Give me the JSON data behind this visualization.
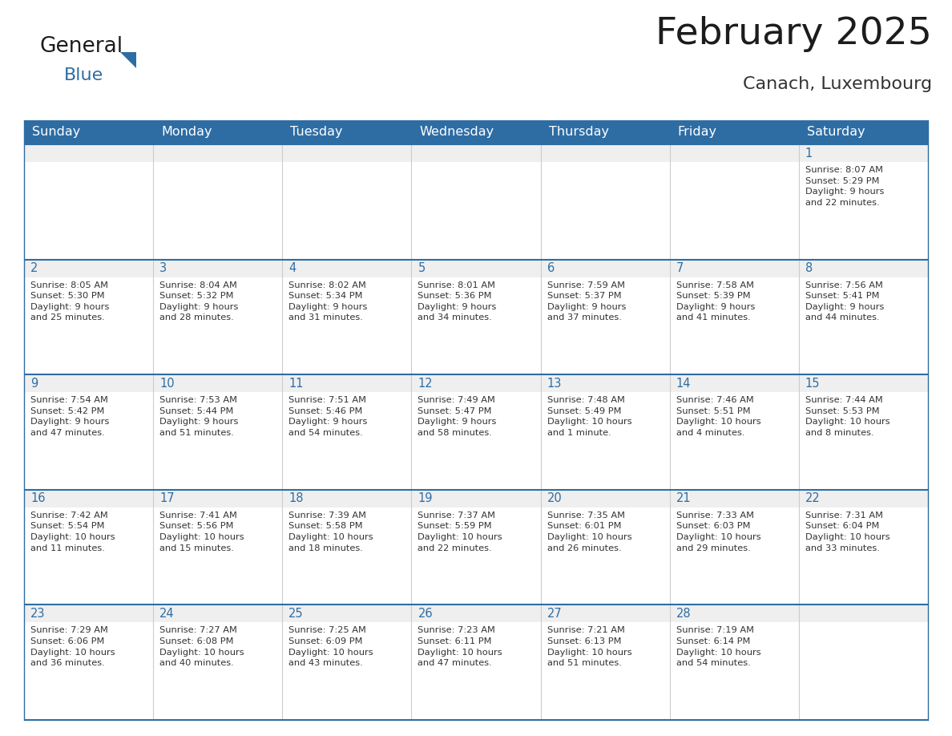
{
  "title": "February 2025",
  "subtitle": "Canach, Luxembourg",
  "header_bg": "#2E6DA4",
  "header_text_color": "#FFFFFF",
  "cell_bg_gray": "#EFEFEF",
  "cell_bg_white": "#FFFFFF",
  "border_color": "#2E6DA4",
  "separator_color": "#CCCCCC",
  "text_color": "#333333",
  "day_number_color": "#2E6DA4",
  "days_of_week": [
    "Sunday",
    "Monday",
    "Tuesday",
    "Wednesday",
    "Thursday",
    "Friday",
    "Saturday"
  ],
  "weeks": [
    [
      {
        "day": "",
        "info": ""
      },
      {
        "day": "",
        "info": ""
      },
      {
        "day": "",
        "info": ""
      },
      {
        "day": "",
        "info": ""
      },
      {
        "day": "",
        "info": ""
      },
      {
        "day": "",
        "info": ""
      },
      {
        "day": "1",
        "info": "Sunrise: 8:07 AM\nSunset: 5:29 PM\nDaylight: 9 hours\nand 22 minutes."
      }
    ],
    [
      {
        "day": "2",
        "info": "Sunrise: 8:05 AM\nSunset: 5:30 PM\nDaylight: 9 hours\nand 25 minutes."
      },
      {
        "day": "3",
        "info": "Sunrise: 8:04 AM\nSunset: 5:32 PM\nDaylight: 9 hours\nand 28 minutes."
      },
      {
        "day": "4",
        "info": "Sunrise: 8:02 AM\nSunset: 5:34 PM\nDaylight: 9 hours\nand 31 minutes."
      },
      {
        "day": "5",
        "info": "Sunrise: 8:01 AM\nSunset: 5:36 PM\nDaylight: 9 hours\nand 34 minutes."
      },
      {
        "day": "6",
        "info": "Sunrise: 7:59 AM\nSunset: 5:37 PM\nDaylight: 9 hours\nand 37 minutes."
      },
      {
        "day": "7",
        "info": "Sunrise: 7:58 AM\nSunset: 5:39 PM\nDaylight: 9 hours\nand 41 minutes."
      },
      {
        "day": "8",
        "info": "Sunrise: 7:56 AM\nSunset: 5:41 PM\nDaylight: 9 hours\nand 44 minutes."
      }
    ],
    [
      {
        "day": "9",
        "info": "Sunrise: 7:54 AM\nSunset: 5:42 PM\nDaylight: 9 hours\nand 47 minutes."
      },
      {
        "day": "10",
        "info": "Sunrise: 7:53 AM\nSunset: 5:44 PM\nDaylight: 9 hours\nand 51 minutes."
      },
      {
        "day": "11",
        "info": "Sunrise: 7:51 AM\nSunset: 5:46 PM\nDaylight: 9 hours\nand 54 minutes."
      },
      {
        "day": "12",
        "info": "Sunrise: 7:49 AM\nSunset: 5:47 PM\nDaylight: 9 hours\nand 58 minutes."
      },
      {
        "day": "13",
        "info": "Sunrise: 7:48 AM\nSunset: 5:49 PM\nDaylight: 10 hours\nand 1 minute."
      },
      {
        "day": "14",
        "info": "Sunrise: 7:46 AM\nSunset: 5:51 PM\nDaylight: 10 hours\nand 4 minutes."
      },
      {
        "day": "15",
        "info": "Sunrise: 7:44 AM\nSunset: 5:53 PM\nDaylight: 10 hours\nand 8 minutes."
      }
    ],
    [
      {
        "day": "16",
        "info": "Sunrise: 7:42 AM\nSunset: 5:54 PM\nDaylight: 10 hours\nand 11 minutes."
      },
      {
        "day": "17",
        "info": "Sunrise: 7:41 AM\nSunset: 5:56 PM\nDaylight: 10 hours\nand 15 minutes."
      },
      {
        "day": "18",
        "info": "Sunrise: 7:39 AM\nSunset: 5:58 PM\nDaylight: 10 hours\nand 18 minutes."
      },
      {
        "day": "19",
        "info": "Sunrise: 7:37 AM\nSunset: 5:59 PM\nDaylight: 10 hours\nand 22 minutes."
      },
      {
        "day": "20",
        "info": "Sunrise: 7:35 AM\nSunset: 6:01 PM\nDaylight: 10 hours\nand 26 minutes."
      },
      {
        "day": "21",
        "info": "Sunrise: 7:33 AM\nSunset: 6:03 PM\nDaylight: 10 hours\nand 29 minutes."
      },
      {
        "day": "22",
        "info": "Sunrise: 7:31 AM\nSunset: 6:04 PM\nDaylight: 10 hours\nand 33 minutes."
      }
    ],
    [
      {
        "day": "23",
        "info": "Sunrise: 7:29 AM\nSunset: 6:06 PM\nDaylight: 10 hours\nand 36 minutes."
      },
      {
        "day": "24",
        "info": "Sunrise: 7:27 AM\nSunset: 6:08 PM\nDaylight: 10 hours\nand 40 minutes."
      },
      {
        "day": "25",
        "info": "Sunrise: 7:25 AM\nSunset: 6:09 PM\nDaylight: 10 hours\nand 43 minutes."
      },
      {
        "day": "26",
        "info": "Sunrise: 7:23 AM\nSunset: 6:11 PM\nDaylight: 10 hours\nand 47 minutes."
      },
      {
        "day": "27",
        "info": "Sunrise: 7:21 AM\nSunset: 6:13 PM\nDaylight: 10 hours\nand 51 minutes."
      },
      {
        "day": "28",
        "info": "Sunrise: 7:19 AM\nSunset: 6:14 PM\nDaylight: 10 hours\nand 54 minutes."
      },
      {
        "day": "",
        "info": ""
      }
    ]
  ],
  "logo_text1": "General",
  "logo_text2": "Blue",
  "title_fontsize": 34,
  "subtitle_fontsize": 16,
  "header_fontsize": 11.5,
  "day_number_fontsize": 10.5,
  "info_fontsize": 8.2
}
